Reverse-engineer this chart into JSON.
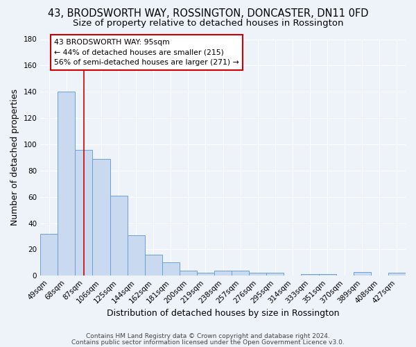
{
  "title": "43, BRODSWORTH WAY, ROSSINGTON, DONCASTER, DN11 0FD",
  "subtitle": "Size of property relative to detached houses in Rossington",
  "xlabel": "Distribution of detached houses by size in Rossington",
  "ylabel": "Number of detached properties",
  "categories": [
    "49sqm",
    "68sqm",
    "87sqm",
    "106sqm",
    "125sqm",
    "144sqm",
    "162sqm",
    "181sqm",
    "200sqm",
    "219sqm",
    "238sqm",
    "257sqm",
    "276sqm",
    "295sqm",
    "314sqm",
    "333sqm",
    "351sqm",
    "370sqm",
    "389sqm",
    "408sqm",
    "427sqm"
  ],
  "values": [
    32,
    140,
    96,
    89,
    61,
    31,
    16,
    10,
    4,
    2,
    4,
    4,
    2,
    2,
    0,
    1,
    1,
    0,
    3,
    0,
    2
  ],
  "bar_color": "#c9d9f0",
  "bar_edge_color": "#6b9fd4",
  "vline_x": 2.0,
  "vline_color": "#cc0000",
  "annotation_line1": "43 BRODSWORTH WAY: 95sqm",
  "annotation_line2": "← 44% of detached houses are smaller (215)",
  "annotation_line3": "56% of semi-detached houses are larger (271) →",
  "annotation_box_color": "#ffffff",
  "annotation_box_edge": "#cc0000",
  "ylim": [
    0,
    180
  ],
  "yticks": [
    0,
    20,
    40,
    60,
    80,
    100,
    120,
    140,
    160,
    180
  ],
  "footer_line1": "Contains HM Land Registry data © Crown copyright and database right 2024.",
  "footer_line2": "Contains public sector information licensed under the Open Government Licence v3.0.",
  "bg_color": "#eef2f9",
  "grid_color": "#ffffff",
  "title_fontsize": 10.5,
  "subtitle_fontsize": 9.5,
  "axis_fontsize": 9,
  "tick_fontsize": 7.5,
  "footer_fontsize": 6.5
}
